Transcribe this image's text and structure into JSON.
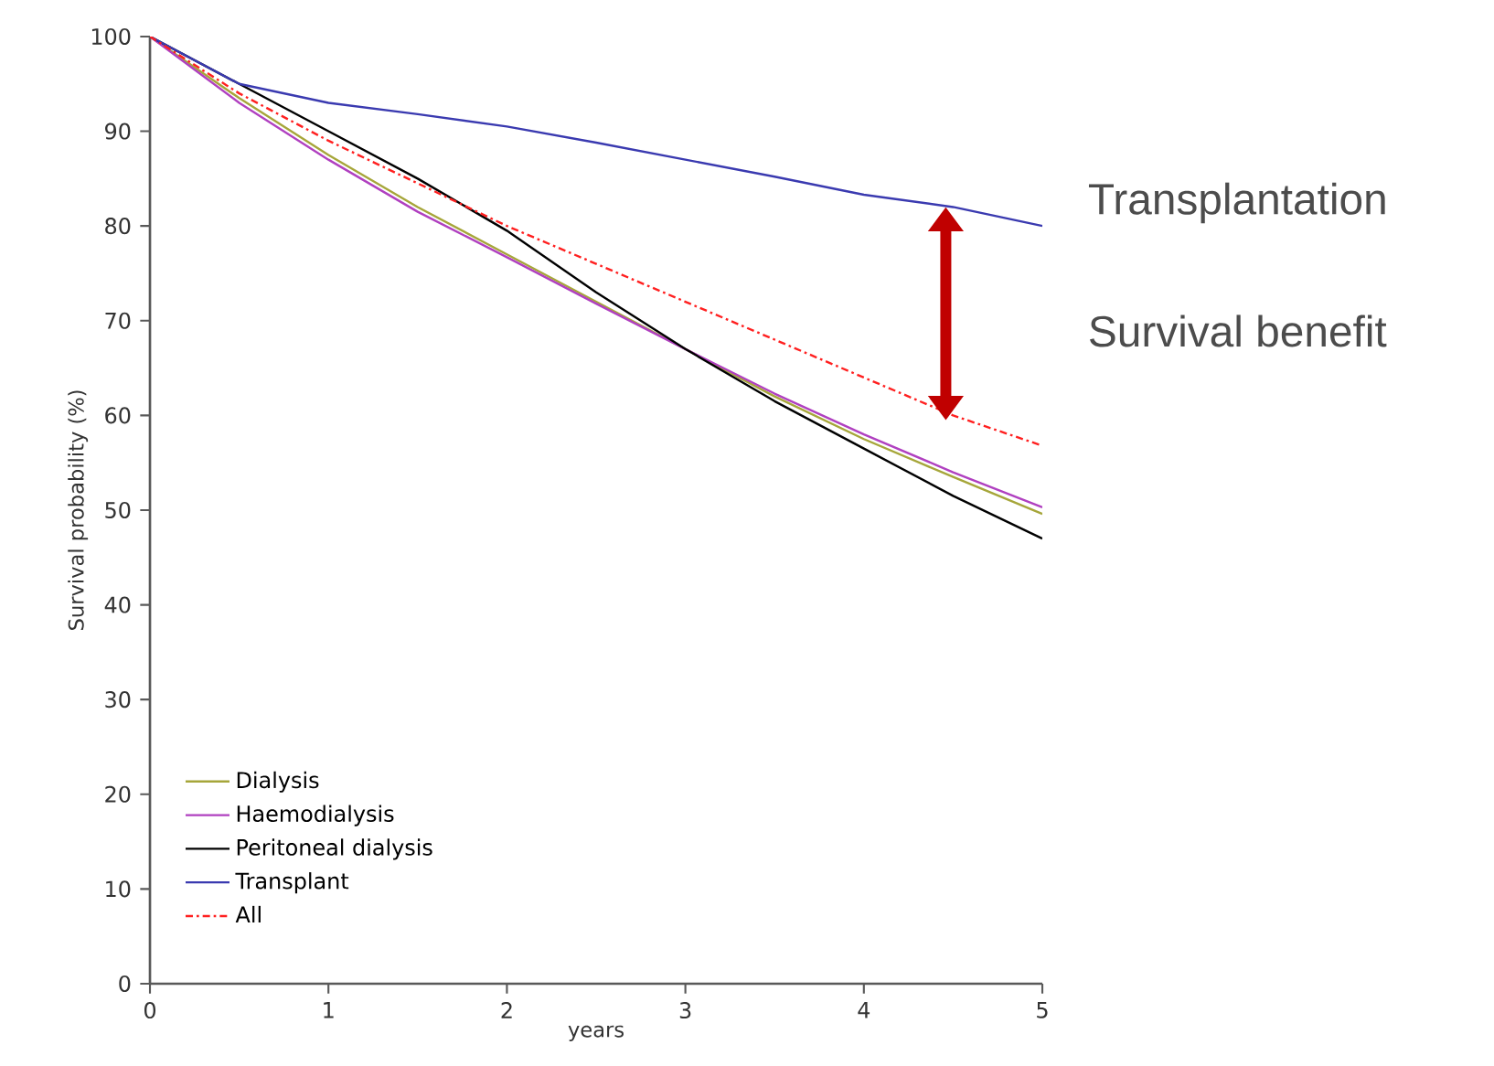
{
  "chart_data": {
    "type": "line",
    "xlabel": "years",
    "ylabel": "Survival probability (%)",
    "x": [
      0,
      0.5,
      1,
      1.5,
      2,
      2.5,
      3,
      3.5,
      4,
      4.5,
      5
    ],
    "series": [
      {
        "name": "Dialysis",
        "color": "#a6a63a",
        "values": [
          100,
          93.5,
          87.5,
          82,
          77,
          72,
          67,
          62,
          57.5,
          53.5,
          49.6
        ]
      },
      {
        "name": "Haemodialysis",
        "color": "#b040c0",
        "values": [
          100,
          93,
          87,
          81.5,
          76.7,
          71.8,
          67,
          62.3,
          58,
          54,
          50.3
        ]
      },
      {
        "name": "Peritoneal dialysis",
        "color": "#000000",
        "values": [
          100,
          95,
          90,
          85,
          79.5,
          73,
          67,
          61.5,
          56.5,
          51.5,
          47
        ]
      },
      {
        "name": "Transplant",
        "color": "#3a3ab0",
        "values": [
          100,
          95,
          93,
          91.8,
          90.5,
          88.8,
          87,
          85.2,
          83.3,
          82,
          80
        ]
      },
      {
        "name": "All",
        "color": "#ff2020",
        "line_style": "dashed",
        "values": [
          100,
          94,
          89,
          84.5,
          80,
          76,
          72,
          68,
          64,
          60,
          56.8
        ]
      }
    ],
    "xlim": [
      0,
      5
    ],
    "xticks": [
      0,
      1,
      2,
      3,
      4,
      5
    ],
    "ylim": [
      0,
      100
    ],
    "yticks": [
      0,
      10,
      20,
      30,
      40,
      50,
      60,
      70,
      80,
      90,
      100
    ],
    "grid": false,
    "legend": "bottom left",
    "marker": "none",
    "line_style": "solid",
    "annotations": [
      "Transplantation",
      "Survival benefit"
    ]
  }
}
